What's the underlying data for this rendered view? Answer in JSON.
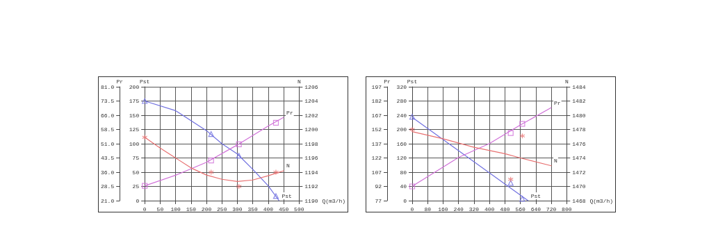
{
  "chart_data": [
    {
      "type": "line",
      "xlabel": "Q(m3/h)",
      "ylabel": "Pst",
      "y2label": "N",
      "y3label": "Pr",
      "xlim": [
        0,
        500
      ],
      "xticks": [
        0,
        50,
        100,
        150,
        200,
        250,
        300,
        350,
        400,
        450,
        500
      ],
      "ylim": [
        0,
        200
      ],
      "yticks": [
        0,
        25,
        50,
        75,
        100,
        125,
        150,
        175,
        200
      ],
      "y2lim": [
        1190,
        1206
      ],
      "y2ticks": [
        1190,
        1192,
        1194,
        1196,
        1198,
        1200,
        1202,
        1204,
        1206
      ],
      "y3lim": [
        21,
        81
      ],
      "y3ticks": [
        {
          "value": 21,
          "label": "21.0"
        },
        {
          "value": 28.5,
          "label": "28.5"
        },
        {
          "value": 36,
          "label": "36.0"
        },
        {
          "value": 43.5,
          "label": "43.5"
        },
        {
          "value": 51,
          "label": "51.0"
        },
        {
          "value": 58.5,
          "label": "58.5"
        },
        {
          "value": 66,
          "label": "66.0"
        },
        {
          "value": 73.5,
          "label": "73.5"
        },
        {
          "value": 81,
          "label": "81.0"
        }
      ],
      "grid": true,
      "legend": false,
      "series": [
        {
          "name": "Pst",
          "marker": "none",
          "color": "#7070e0",
          "x": [
            0,
            100,
            200,
            250,
            300,
            350,
            400,
            435
          ],
          "values": [
            175,
            158,
            123,
            100,
            82,
            55,
            26,
            0
          ]
        },
        {
          "type": "scatter",
          "marker": "triangle",
          "color": "#7070e0",
          "x": [
            0,
            215,
            305,
            425
          ],
          "values": [
            175,
            117,
            79,
            8
          ]
        },
        {
          "name": "Pr",
          "axis": "y3",
          "marker": "none",
          "color": "#d070d8",
          "x": [
            0,
            100,
            200,
            300,
            400,
            450
          ],
          "values": [
            28.8,
            34.4,
            41.2,
            50.4,
            60.3,
            64.9
          ]
        },
        {
          "type": "scatter",
          "axis": "y3",
          "marker": "square",
          "color": "#d070d8",
          "x": [
            0,
            215,
            305,
            425
          ],
          "values": [
            28.8,
            42.2,
            50.7,
            62.0
          ]
        },
        {
          "name": "N",
          "axis": "y2",
          "marker": "none",
          "color": "#e87070",
          "x": [
            0,
            50,
            100,
            150,
            200,
            250,
            300,
            350,
            400,
            450
          ],
          "values": [
            1198.9,
            1197.4,
            1196.0,
            1194.6,
            1193.6,
            1193.0,
            1192.7,
            1192.9,
            1193.5,
            1194.2
          ]
        },
        {
          "type": "scatter",
          "axis": "y2",
          "marker": "cross",
          "color": "#e87070",
          "x": [
            0,
            215,
            305,
            425
          ],
          "values": [
            1198.9,
            1194.0,
            1192.0,
            1194.0
          ]
        }
      ]
    },
    {
      "type": "line",
      "xlabel": "Q(m3/h)",
      "ylabel": "Pst",
      "y2label": "N",
      "y3label": "Pr",
      "xlim": [
        0,
        800
      ],
      "xticks": [
        0,
        80,
        160,
        240,
        320,
        400,
        480,
        560,
        640,
        720,
        800
      ],
      "ylim": [
        0,
        320
      ],
      "yticks": [
        0,
        40,
        80,
        120,
        160,
        200,
        240,
        280,
        320
      ],
      "y2lim": [
        1468,
        1484
      ],
      "y2ticks": [
        1468,
        1470,
        1472,
        1474,
        1476,
        1478,
        1480,
        1482,
        1484
      ],
      "y3lim": [
        77,
        197
      ],
      "y3ticks": [
        77,
        92,
        107,
        122,
        137,
        152,
        167,
        182,
        197
      ],
      "grid": true,
      "legend": false,
      "series": [
        {
          "name": "Pst",
          "marker": "none",
          "color": "#7070e0",
          "x": [
            0,
            600
          ],
          "values": [
            234,
            0
          ]
        },
        {
          "type": "scatter",
          "marker": "triangle",
          "color": "#7070e0",
          "x": [
            0,
            510,
            570
          ],
          "values": [
            236,
            50,
            5
          ]
        },
        {
          "name": "Pr",
          "axis": "y3",
          "marker": "none",
          "color": "#d070d8",
          "x": [
            0,
            240,
            400,
            500,
            560,
            720
          ],
          "values": [
            92.1,
            122.6,
            137.2,
            149.4,
            156.8,
            175
          ]
        },
        {
          "type": "scatter",
          "axis": "y3",
          "marker": "square",
          "color": "#d070d8",
          "x": [
            0,
            510,
            570
          ],
          "values": [
            92,
            148.2,
            158
          ]
        },
        {
          "name": "N",
          "axis": "y2",
          "marker": "none",
          "color": "#e87070",
          "x": [
            0,
            160,
            320,
            480,
            560,
            720
          ],
          "values": [
            1477.7,
            1476.7,
            1475.5,
            1474.6,
            1474.0,
            1472.9
          ]
        },
        {
          "type": "scatter",
          "axis": "y2",
          "marker": "cross",
          "color": "#e87070",
          "x": [
            0,
            510,
            570
          ],
          "values": [
            1478.0,
            1471.0,
            1477.1
          ]
        }
      ]
    }
  ]
}
